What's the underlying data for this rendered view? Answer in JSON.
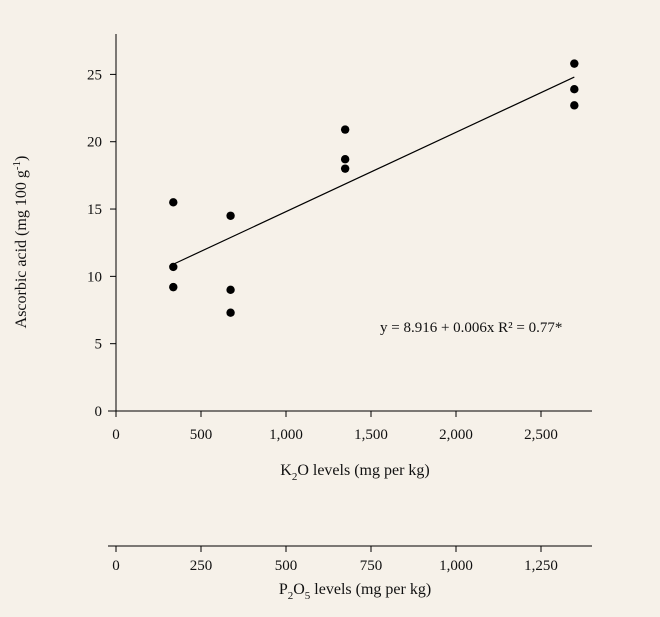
{
  "background_color": "#f6f1e9",
  "chart_data": {
    "type": "scatter",
    "title": "",
    "ylabel": {
      "main": "Ascorbic acid (mg 100 g",
      "sup": "-1",
      "end": ")"
    },
    "xlabel_primary": {
      "pre": "K",
      "sub": "2",
      "post": "O levels (mg per kg)"
    },
    "xlabel_secondary": {
      "pre": "P",
      "sub1": "2",
      "mid": "O",
      "sub2": "5",
      "post": " levels (mg per kg)"
    },
    "xlim": [
      0,
      2800
    ],
    "ylim": [
      0,
      28
    ],
    "x_ticks": [
      0,
      500,
      1000,
      1500,
      2000,
      2500
    ],
    "x_tick_labels": [
      "0",
      "500",
      "1,000",
      "1,500",
      "2,000",
      "2,500"
    ],
    "secondary_x_ticks": [
      0,
      250,
      500,
      750,
      1000,
      1250
    ],
    "secondary_x_tick_labels": [
      "0",
      "250",
      "500",
      "750",
      "1,000",
      "1,250"
    ],
    "secondary_xlim": [
      0,
      1400
    ],
    "y_ticks": [
      0,
      5,
      10,
      15,
      20,
      25
    ],
    "y_tick_labels": [
      "0",
      "5",
      "10",
      "15",
      "20",
      "25"
    ],
    "points": [
      {
        "x": 337,
        "y": 15.5
      },
      {
        "x": 337,
        "y": 10.7
      },
      {
        "x": 337,
        "y": 9.2
      },
      {
        "x": 674,
        "y": 14.5
      },
      {
        "x": 674,
        "y": 9.0
      },
      {
        "x": 674,
        "y": 7.3
      },
      {
        "x": 1348,
        "y": 20.9
      },
      {
        "x": 1348,
        "y": 18.7
      },
      {
        "x": 1348,
        "y": 18.0
      },
      {
        "x": 2696,
        "y": 25.8
      },
      {
        "x": 2696,
        "y": 23.9
      },
      {
        "x": 2696,
        "y": 22.7
      }
    ],
    "trendline": {
      "x": [
        337,
        2696
      ],
      "y": [
        10.9,
        24.8
      ]
    },
    "annotation": "y = 8.916 + 0.006x R² = 0.77*",
    "grid": false,
    "marker_color": "#000000"
  }
}
